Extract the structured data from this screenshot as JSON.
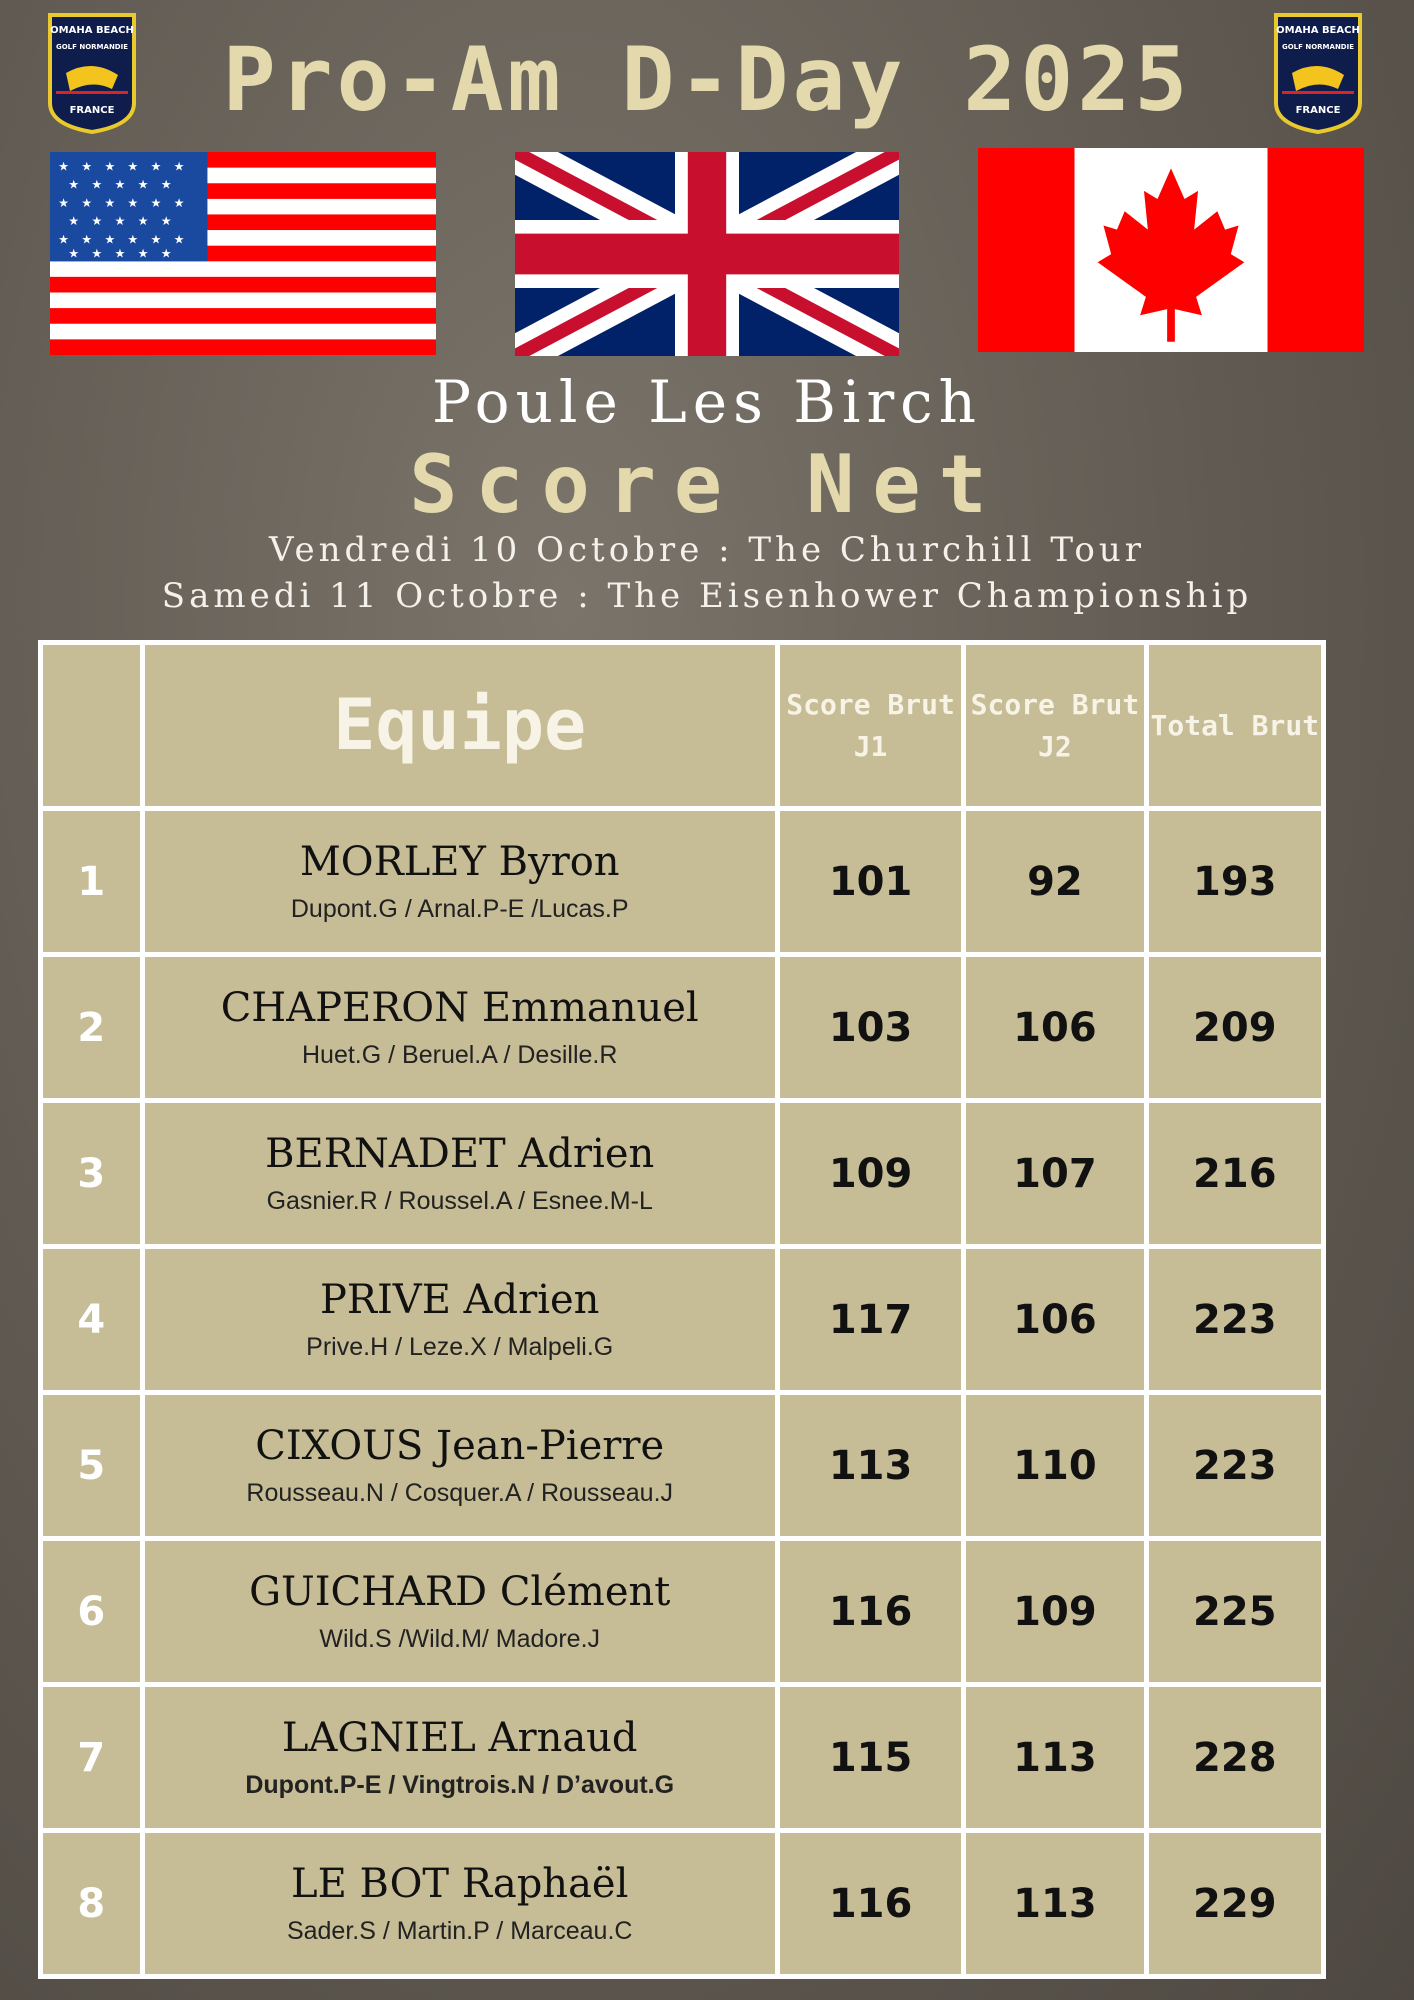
{
  "title": "Pro-Am D-Day 2025",
  "logo": {
    "top_text": "OMAHA BEACH",
    "middle_text": "GOLF NORMANDIE",
    "bottom_text": "FRANCE"
  },
  "flags": [
    "usa-flag",
    "uk-flag",
    "canada-flag"
  ],
  "poule": "Poule Les Birch",
  "subtitle": "Score Net",
  "dates": [
    "Vendredi 10 Octobre : The Churchill Tour",
    "Samedi 11 Octobre : The Eisenhower Championship"
  ],
  "table": {
    "headers": {
      "rank": "",
      "team": "Equipe",
      "j1": "Score Brut J1",
      "j2": "Score Brut J2",
      "total": "Total Brut"
    },
    "rows": [
      {
        "rank": "1",
        "team": "MORLEY Byron",
        "players": "Dupont.G / Arnal.P-E /Lucas.P",
        "j1": "101",
        "j2": "92",
        "total": "193"
      },
      {
        "rank": "2",
        "team": "CHAPERON Emmanuel",
        "players": "Huet.G / Beruel.A / Desille.R",
        "j1": "103",
        "j2": "106",
        "total": "209"
      },
      {
        "rank": "3",
        "team": "BERNADET Adrien",
        "players": "Gasnier.R / Roussel.A / Esnee.M-L",
        "j1": "109",
        "j2": "107",
        "total": "216"
      },
      {
        "rank": "4",
        "team": "PRIVE Adrien",
        "players": "Prive.H / Leze.X / Malpeli.G",
        "j1": "117",
        "j2": "106",
        "total": "223"
      },
      {
        "rank": "5",
        "team": "CIXOUS Jean-Pierre",
        "players": "Rousseau.N / Cosquer.A / Rousseau.J",
        "j1": "113",
        "j2": "110",
        "total": "223"
      },
      {
        "rank": "6",
        "team": "GUICHARD Clément",
        "players": "Wild.S /Wild.M/ Madore.J",
        "j1": "116",
        "j2": "109",
        "total": "225"
      },
      {
        "rank": "7",
        "team": "LAGNIEL Arnaud",
        "players": "Dupont.P-E / Vingtrois.N / D’avout.G",
        "j1": "115",
        "j2": "113",
        "total": "228"
      },
      {
        "rank": "8",
        "team": "LE BOT Raphaël",
        "players": "Sader.S / Martin.P / Marceau.C",
        "j1": "116",
        "j2": "113",
        "total": "229"
      }
    ]
  },
  "colors": {
    "background": "#605a52",
    "cell": "#c6bc95",
    "accent_text": "#e3d9ad"
  }
}
